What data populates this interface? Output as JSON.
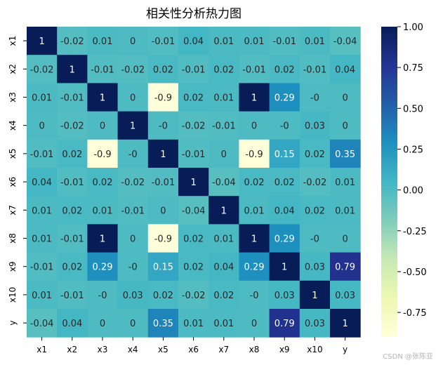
{
  "chart_data": {
    "type": "heatmap",
    "title": "相关性分析热力图",
    "rows": [
      "x1",
      "x2",
      "x3",
      "x4",
      "x5",
      "x6",
      "x7",
      "x8",
      "x9",
      "x10",
      "y"
    ],
    "columns": [
      "x1",
      "x2",
      "x3",
      "x4",
      "x5",
      "x6",
      "x7",
      "x8",
      "x9",
      "x10",
      "y"
    ],
    "values": [
      [
        "1",
        "-0.02",
        "0.01",
        "0",
        "-0.01",
        "0.04",
        "0.01",
        "0.01",
        "-0.01",
        "0.01",
        "-0.04"
      ],
      [
        "-0.02",
        "1",
        "-0.01",
        "-0.02",
        "0.02",
        "-0.01",
        "0.02",
        "-0.01",
        "0.02",
        "-0.01",
        "0.04"
      ],
      [
        "0.01",
        "-0.01",
        "1",
        "0",
        "-0.9",
        "0.02",
        "0.01",
        "1",
        "0.29",
        "-0",
        "0"
      ],
      [
        "0",
        "-0.02",
        "0",
        "1",
        "-0",
        "-0.02",
        "-0.01",
        "0",
        "-0",
        "0.03",
        "0"
      ],
      [
        "-0.01",
        "0.02",
        "-0.9",
        "-0",
        "1",
        "-0.01",
        "0",
        "-0.9",
        "0.15",
        "0.02",
        "0.35"
      ],
      [
        "0.04",
        "-0.01",
        "0.02",
        "-0.02",
        "-0.01",
        "1",
        "-0.04",
        "0.02",
        "0.02",
        "-0.02",
        "0.01"
      ],
      [
        "0.01",
        "0.02",
        "0.01",
        "-0.01",
        "0",
        "-0.04",
        "1",
        "0.01",
        "0.04",
        "0.02",
        "0.01"
      ],
      [
        "0.01",
        "-0.01",
        "1",
        "0",
        "-0.9",
        "0.02",
        "0.01",
        "1",
        "0.29",
        "-0",
        "0"
      ],
      [
        "-0.01",
        "0.02",
        "0.29",
        "-0",
        "0.15",
        "0.02",
        "0.04",
        "0.29",
        "1",
        "0.03",
        "0.79"
      ],
      [
        "0.01",
        "-0.01",
        "-0",
        "0.03",
        "0.02",
        "-0.02",
        "0.02",
        "-0",
        "0.03",
        "1",
        "0.03"
      ],
      [
        "-0.04",
        "0.04",
        "0",
        "0",
        "0.35",
        "0.01",
        "0.01",
        "0",
        "0.79",
        "0.03",
        "1"
      ]
    ],
    "colormap": "YlGnBu",
    "vmin": -0.9,
    "vmax": 1.0,
    "colorbar_ticks": [
      "1.00",
      "0.75",
      "0.50",
      "0.25",
      "0.00",
      "-0.25",
      "-0.50",
      "-0.75"
    ],
    "annotations": true
  },
  "watermark": "CSDN @张陈亚"
}
